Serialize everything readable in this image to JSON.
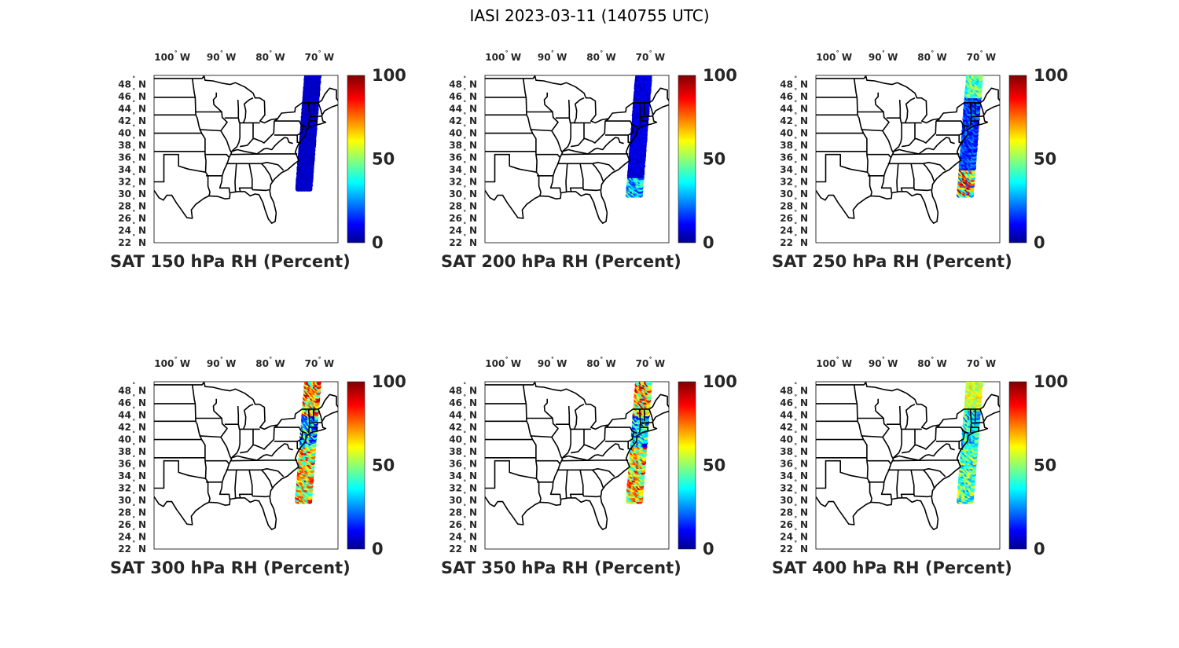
{
  "figure": {
    "title": "IASI 2023-03-11 (140755 UTC)"
  },
  "axes": {
    "lon_ticks": [
      {
        "num": "100",
        "hemi": "W"
      },
      {
        "num": "90",
        "hemi": "W"
      },
      {
        "num": "80",
        "hemi": "W"
      },
      {
        "num": "70",
        "hemi": "W"
      }
    ],
    "lat_ticks": [
      {
        "num": "48",
        "hemi": "N"
      },
      {
        "num": "46",
        "hemi": "N"
      },
      {
        "num": "44",
        "hemi": "N"
      },
      {
        "num": "42",
        "hemi": "N"
      },
      {
        "num": "40",
        "hemi": "N"
      },
      {
        "num": "38",
        "hemi": "N"
      },
      {
        "num": "36",
        "hemi": "N"
      },
      {
        "num": "34",
        "hemi": "N"
      },
      {
        "num": "32",
        "hemi": "N"
      },
      {
        "num": "30",
        "hemi": "N"
      },
      {
        "num": "28",
        "hemi": "N"
      },
      {
        "num": "26",
        "hemi": "N"
      },
      {
        "num": "24",
        "hemi": "N"
      },
      {
        "num": "22",
        "hemi": "N"
      }
    ],
    "lon_range": [
      -105,
      -67.5
    ],
    "lat_range": [
      22,
      49.5
    ]
  },
  "colorbar": {
    "colormap": "jet",
    "range": [
      0,
      100
    ],
    "tick_labels": [
      "100",
      "50",
      "0"
    ]
  },
  "panels": [
    {
      "title": "SAT 150 hPa RH (Percent)",
      "rh_profile": "very-dry"
    },
    {
      "title": "SAT 200 hPa RH (Percent)",
      "rh_profile": "dry"
    },
    {
      "title": "SAT 250 hPa RH (Percent)",
      "rh_profile": "mixed-dry"
    },
    {
      "title": "SAT 300 hPa RH (Percent)",
      "rh_profile": "moist"
    },
    {
      "title": "SAT 350 hPa RH (Percent)",
      "rh_profile": "moist"
    },
    {
      "title": "SAT 400 hPa RH (Percent)",
      "rh_profile": "moist-mid"
    }
  ]
}
